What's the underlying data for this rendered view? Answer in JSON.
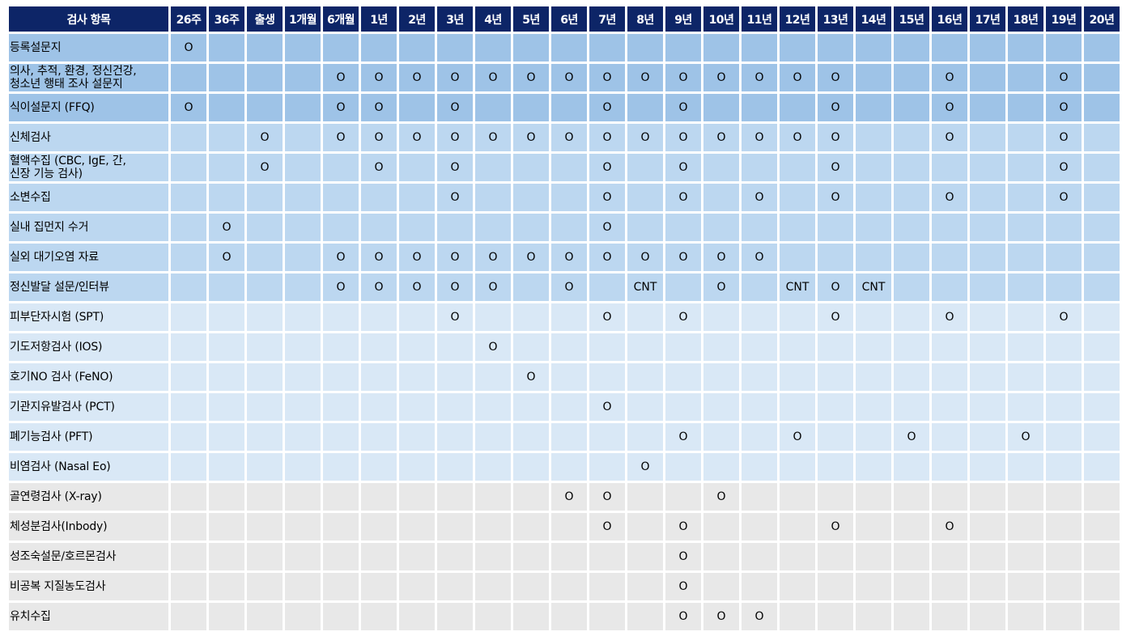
{
  "header": {
    "item_label": "검사 항목",
    "ages": [
      "26주",
      "36주",
      "출생",
      "1개월",
      "6개월",
      "1년",
      "2년",
      "3년",
      "4년",
      "5년",
      "6년",
      "7년",
      "8년",
      "9년",
      "10년",
      "11년",
      "12년",
      "13년",
      "14년",
      "15년",
      "16년",
      "17년",
      "18년",
      "19년",
      "20년"
    ]
  },
  "rows": [
    {
      "group": "g1",
      "name": "등록설문지",
      "marks": [
        "O",
        "",
        "",
        "",
        "",
        "",
        "",
        "",
        "",
        "",
        "",
        "",
        "",
        "",
        "",
        "",
        "",
        "",
        "",
        "",
        "",
        "",
        "",
        "",
        ""
      ]
    },
    {
      "group": "g1",
      "name": "의사, 추적, 환경, 정신건강,\n청소년 행태 조사 설문지",
      "marks": [
        "",
        "",
        "",
        "",
        "O",
        "O",
        "O",
        "O",
        "O",
        "O",
        "O",
        "O",
        "O",
        "O",
        "O",
        "O",
        "O",
        "O",
        "",
        "",
        "O",
        "",
        "",
        "O",
        ""
      ]
    },
    {
      "group": "g1",
      "name": "식이설문지 (FFQ)",
      "marks": [
        "O",
        "",
        "",
        "",
        "O",
        "O",
        "",
        "O",
        "",
        "",
        "",
        "O",
        "",
        "O",
        "",
        "",
        "",
        "O",
        "",
        "",
        "O",
        "",
        "",
        "O",
        ""
      ]
    },
    {
      "group": "g2",
      "name": "신체검사",
      "marks": [
        "",
        "",
        "O",
        "",
        "O",
        "O",
        "O",
        "O",
        "O",
        "O",
        "O",
        "O",
        "O",
        "O",
        "O",
        "O",
        "O",
        "O",
        "",
        "",
        "O",
        "",
        "",
        "O",
        ""
      ]
    },
    {
      "group": "g2",
      "name": "혈액수집 (CBC, IgE, 간,\n신장 기능 검사)",
      "marks": [
        "",
        "",
        "O",
        "",
        "",
        "O",
        "",
        "O",
        "",
        "",
        "",
        "O",
        "",
        "O",
        "",
        "",
        "",
        "O",
        "",
        "",
        "",
        "",
        "",
        "O",
        ""
      ]
    },
    {
      "group": "g2",
      "name": "소변수집",
      "marks": [
        "",
        "",
        "",
        "",
        "",
        "",
        "",
        "O",
        "",
        "",
        "",
        "O",
        "",
        "O",
        "",
        "O",
        "",
        "O",
        "",
        "",
        "O",
        "",
        "",
        "O",
        ""
      ]
    },
    {
      "group": "g2",
      "name": "실내 집먼지 수거",
      "marks": [
        "",
        "O",
        "",
        "",
        "",
        "",
        "",
        "",
        "",
        "",
        "",
        "O",
        "",
        "",
        "",
        "",
        "",
        "",
        "",
        "",
        "",
        "",
        "",
        "",
        ""
      ]
    },
    {
      "group": "g2",
      "name": "실외 대기오염 자료",
      "marks": [
        "",
        "O",
        "",
        "",
        "O",
        "O",
        "O",
        "O",
        "O",
        "O",
        "O",
        "O",
        "O",
        "O",
        "O",
        "O",
        "",
        "",
        "",
        "",
        "",
        "",
        "",
        "",
        ""
      ]
    },
    {
      "group": "g2",
      "name": "정신발달 설문/인터뷰",
      "marks": [
        "",
        "",
        "",
        "",
        "O",
        "O",
        "O",
        "O",
        "O",
        "",
        "O",
        "",
        "CNT",
        "",
        "O",
        "",
        "CNT",
        "O",
        "CNT",
        "",
        "",
        "",
        "",
        "",
        ""
      ]
    },
    {
      "group": "g3",
      "name": "피부단자시험 (SPT)",
      "marks": [
        "",
        "",
        "",
        "",
        "",
        "",
        "",
        "O",
        "",
        "",
        "",
        "O",
        "",
        "O",
        "",
        "",
        "",
        "O",
        "",
        "",
        "O",
        "",
        "",
        "O",
        ""
      ]
    },
    {
      "group": "g3",
      "name": "기도저항검사 (IOS)",
      "marks": [
        "",
        "",
        "",
        "",
        "",
        "",
        "",
        "",
        "O",
        "",
        "",
        "",
        "",
        "",
        "",
        "",
        "",
        "",
        "",
        "",
        "",
        "",
        "",
        "",
        ""
      ]
    },
    {
      "group": "g3",
      "name": "호기NO 검사 (FeNO)",
      "marks": [
        "",
        "",
        "",
        "",
        "",
        "",
        "",
        "",
        "",
        "O",
        "",
        "",
        "",
        "",
        "",
        "",
        "",
        "",
        "",
        "",
        "",
        "",
        "",
        "",
        ""
      ]
    },
    {
      "group": "g3",
      "name": "기관지유발검사 (PCT)",
      "marks": [
        "",
        "",
        "",
        "",
        "",
        "",
        "",
        "",
        "",
        "",
        "",
        "O",
        "",
        "",
        "",
        "",
        "",
        "",
        "",
        "",
        "",
        "",
        "",
        "",
        ""
      ]
    },
    {
      "group": "g3",
      "name": "폐기능검사 (PFT)",
      "marks": [
        "",
        "",
        "",
        "",
        "",
        "",
        "",
        "",
        "",
        "",
        "",
        "",
        "",
        "O",
        "",
        "",
        "O",
        "",
        "",
        "O",
        "",
        "",
        "O",
        "",
        ""
      ]
    },
    {
      "group": "g3",
      "name": "비염검사 (Nasal Eo)",
      "marks": [
        "",
        "",
        "",
        "",
        "",
        "",
        "",
        "",
        "",
        "",
        "",
        "",
        "O",
        "",
        "",
        "",
        "",
        "",
        "",
        "",
        "",
        "",
        "",
        "",
        ""
      ]
    },
    {
      "group": "g4",
      "name": "골연령검사 (X-ray)",
      "marks": [
        "",
        "",
        "",
        "",
        "",
        "",
        "",
        "",
        "",
        "",
        "O",
        "O",
        "",
        "",
        "O",
        "",
        "",
        "",
        "",
        "",
        "",
        "",
        "",
        "",
        ""
      ]
    },
    {
      "group": "g4",
      "name": "체성분검사(Inbody)",
      "marks": [
        "",
        "",
        "",
        "",
        "",
        "",
        "",
        "",
        "",
        "",
        "",
        "O",
        "",
        "O",
        "",
        "",
        "",
        "O",
        "",
        "",
        "O",
        "",
        "",
        "",
        ""
      ]
    },
    {
      "group": "g4",
      "name": "성조숙설문/호르몬검사",
      "marks": [
        "",
        "",
        "",
        "",
        "",
        "",
        "",
        "",
        "",
        "",
        "",
        "",
        "",
        "O",
        "",
        "",
        "",
        "",
        "",
        "",
        "",
        "",
        "",
        "",
        ""
      ]
    },
    {
      "group": "g4",
      "name": "비공복 지질농도검사",
      "marks": [
        "",
        "",
        "",
        "",
        "",
        "",
        "",
        "",
        "",
        "",
        "",
        "",
        "",
        "O",
        "",
        "",
        "",
        "",
        "",
        "",
        "",
        "",
        "",
        "",
        ""
      ]
    },
    {
      "group": "g4",
      "name": "유치수집",
      "marks": [
        "",
        "",
        "",
        "",
        "",
        "",
        "",
        "",
        "",
        "",
        "",
        "",
        "",
        "O",
        "O",
        "O",
        "",
        "",
        "",
        "",
        "",
        "",
        "",
        "",
        ""
      ]
    }
  ]
}
